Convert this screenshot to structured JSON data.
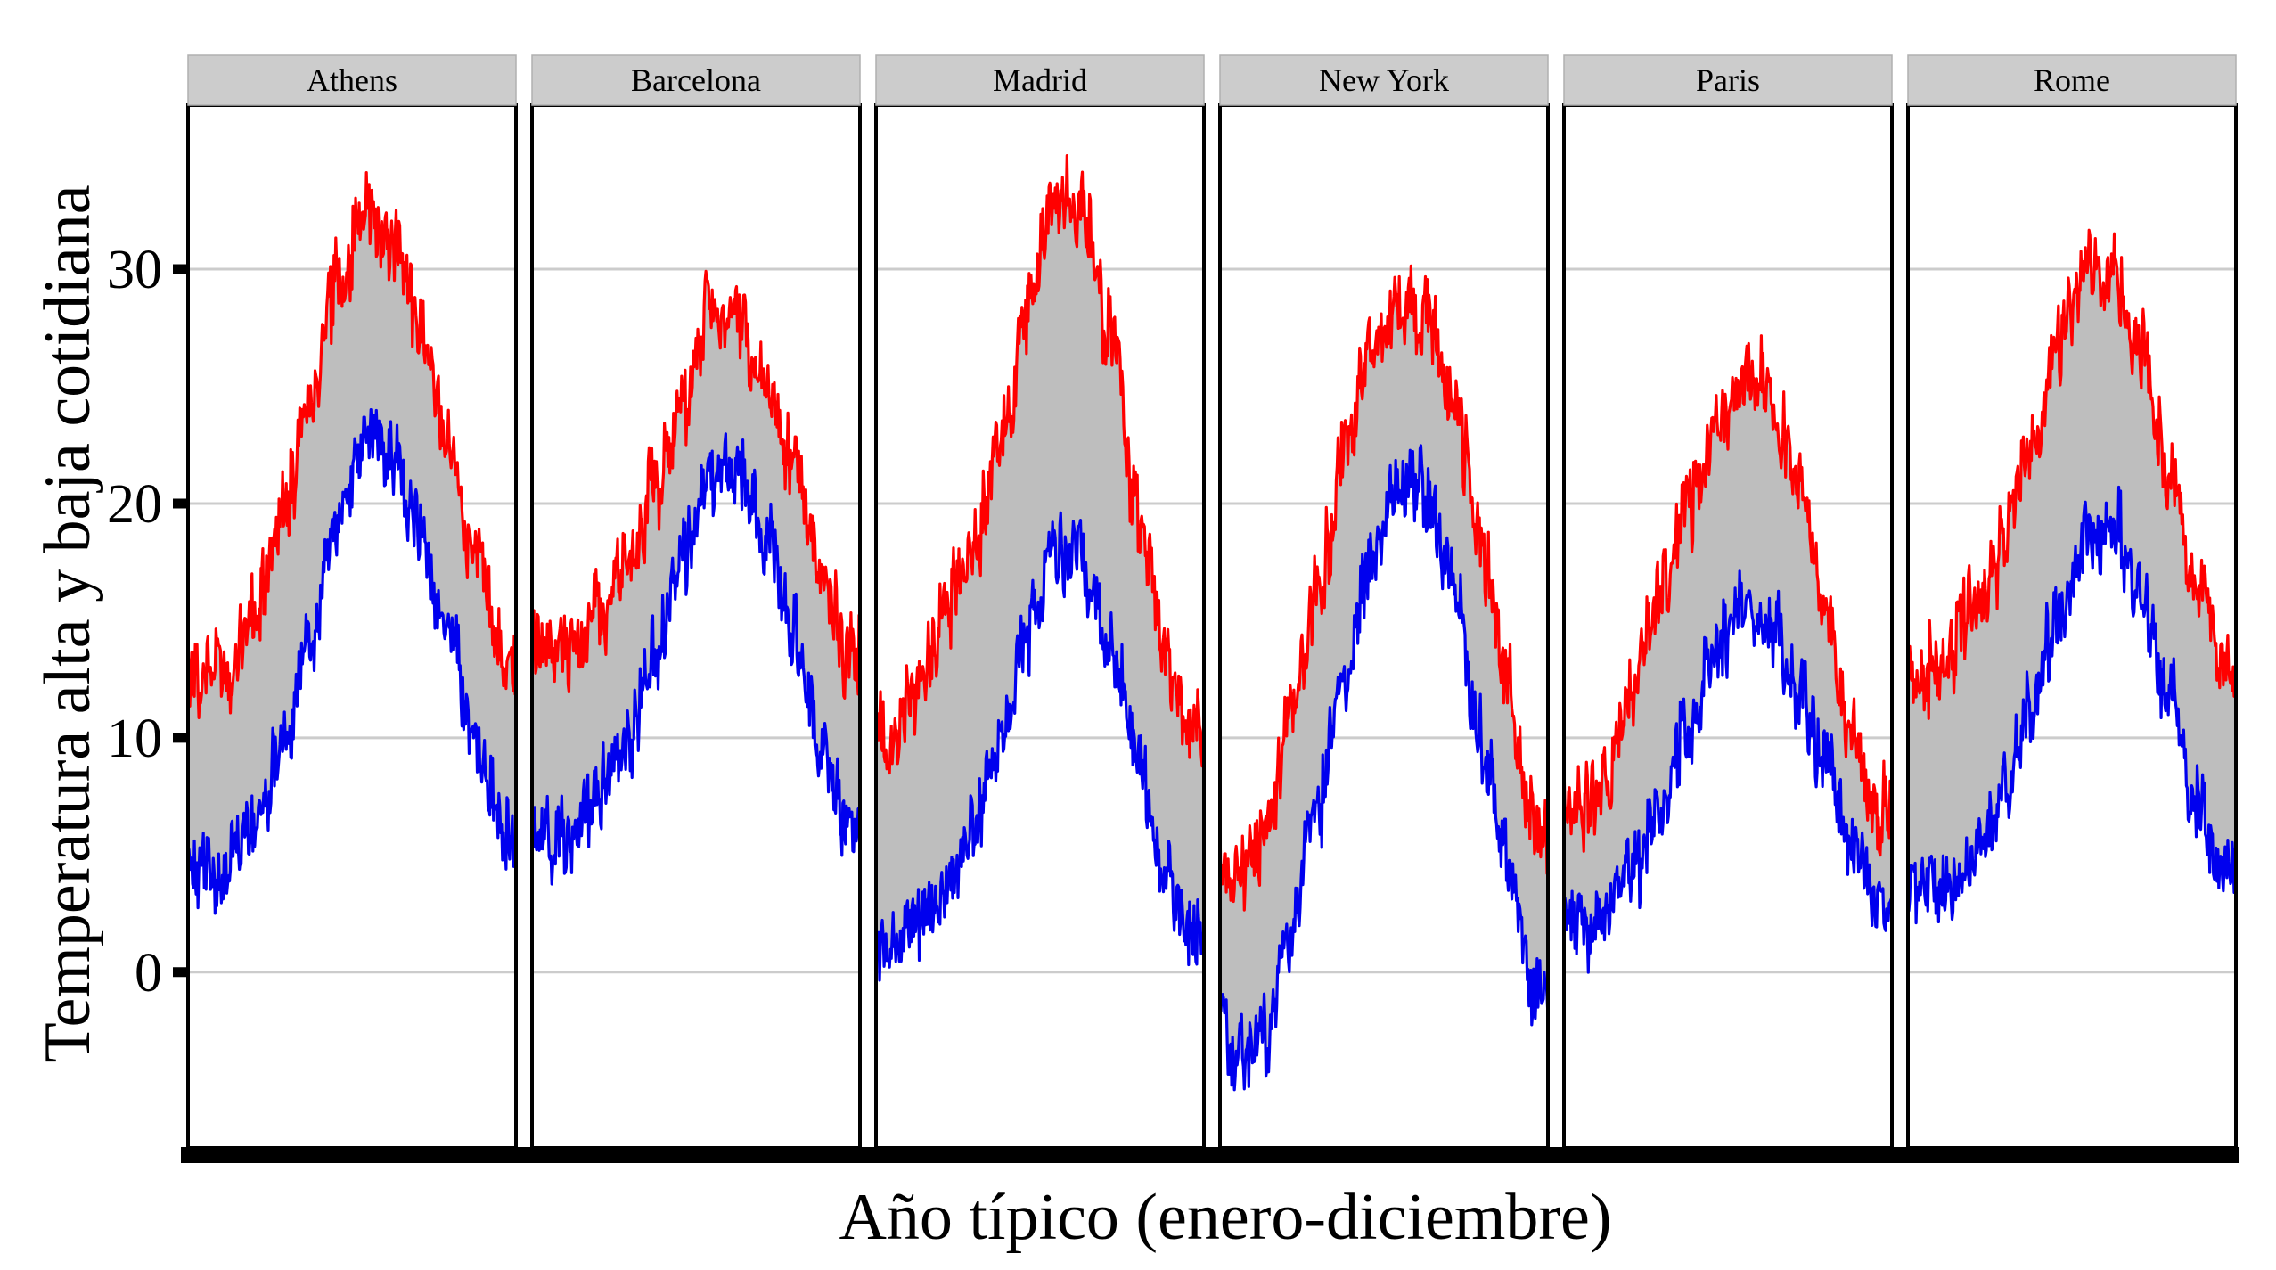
{
  "chart_data": {
    "type": "area",
    "xlabel": "Año típico (enero-diciembre)",
    "ylabel": "Temperatura alta y baja cotidiana",
    "ylim": [
      -7.5,
      37
    ],
    "yticks": [
      0,
      10,
      20,
      30
    ],
    "grid": true,
    "x_month_anchors": [
      1,
      2,
      3,
      4,
      5,
      6,
      7,
      8,
      9,
      10,
      11,
      12
    ],
    "colors": {
      "high": "#ff0000",
      "low": "#0000ee",
      "band": "#bebebe",
      "strip": "#cccccc",
      "grid": "#cccccc"
    },
    "panels": [
      {
        "city": "Athens",
        "high": [
          12.5,
          13.3,
          15.6,
          19.5,
          24.5,
          29.5,
          32.3,
          31.5,
          27.5,
          22.5,
          17.5,
          13.3
        ],
        "low": [
          4.2,
          4.6,
          6.6,
          9.8,
          14.5,
          19.5,
          22.5,
          22.0,
          18.5,
          14.5,
          10.0,
          6.0
        ]
      },
      {
        "city": "Barcelona",
        "high": [
          13.5,
          14.0,
          15.6,
          17.5,
          20.5,
          24.5,
          27.8,
          28.0,
          25.0,
          21.5,
          17.0,
          13.8
        ],
        "low": [
          5.5,
          6.0,
          7.8,
          10.0,
          13.5,
          17.5,
          21.0,
          21.5,
          18.5,
          14.5,
          10.0,
          6.5
        ]
      },
      {
        "city": "Madrid",
        "high": [
          10.0,
          12.0,
          15.5,
          18.0,
          22.0,
          28.0,
          32.8,
          32.5,
          27.5,
          20.0,
          14.0,
          10.5
        ],
        "low": [
          1.0,
          1.5,
          3.5,
          6.0,
          9.5,
          14.5,
          18.0,
          17.5,
          14.0,
          9.5,
          4.5,
          1.5
        ]
      },
      {
        "city": "New York",
        "high": [
          4.0,
          5.5,
          10.0,
          16.0,
          21.5,
          26.5,
          29.0,
          28.0,
          24.5,
          18.5,
          12.0,
          6.5
        ],
        "low": [
          -3.5,
          -3.0,
          1.0,
          6.5,
          12.0,
          17.5,
          21.0,
          20.5,
          16.5,
          10.0,
          4.5,
          -0.5
        ]
      },
      {
        "city": "Paris",
        "high": [
          6.8,
          8.0,
          12.0,
          16.0,
          19.5,
          23.0,
          25.5,
          25.0,
          21.0,
          16.0,
          10.0,
          7.0
        ],
        "low": [
          2.0,
          2.0,
          4.5,
          7.0,
          10.5,
          13.5,
          15.5,
          15.0,
          12.0,
          9.0,
          5.0,
          2.5
        ]
      },
      {
        "city": "Rome",
        "high": [
          12.8,
          13.5,
          15.5,
          18.0,
          22.5,
          27.0,
          29.8,
          29.8,
          26.5,
          21.5,
          16.5,
          13.0
        ],
        "low": [
          3.5,
          3.5,
          5.0,
          7.5,
          11.5,
          15.5,
          18.5,
          19.0,
          16.0,
          12.0,
          7.5,
          4.5
        ]
      }
    ]
  }
}
